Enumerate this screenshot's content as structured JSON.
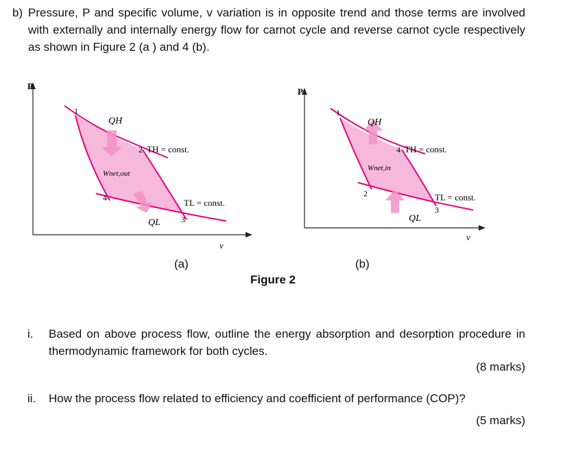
{
  "intro": {
    "label": "b)",
    "text": "Pressure, P and specific volume, v variation is in opposite trend and those terms are involved with externally and internally energy flow for carnot cycle and reverse carnot cycle respectively as shown in Figure 2 (a ) and 4 (b)."
  },
  "figure": {
    "title": "Figure 2",
    "colors": {
      "fill": "#f6b9dc",
      "line": "#e6007e",
      "axis": "#222222",
      "arrow": "#f291c4"
    },
    "panel_a": {
      "sublabel": "(a)",
      "y_axis": "P",
      "x_axis": "v",
      "q_hot": "QH",
      "q_cold": "QL",
      "work": "Wnet,out",
      "th_label": "TH = const.",
      "tl_label": "TL = const.",
      "points": [
        "1",
        "2",
        "3",
        "4"
      ]
    },
    "panel_b": {
      "sublabel": "(b)",
      "y_axis": "P",
      "x_axis": "v",
      "q_hot": "QH",
      "q_cold": "QL",
      "work": "Wnet,in",
      "th_label": "TH = const.",
      "tl_label": "TL = const.",
      "points": [
        "1",
        "2",
        "3",
        "4"
      ]
    }
  },
  "questions": [
    {
      "number": "i.",
      "text": "Based on above process flow, outline the energy absorption and desorption procedure in thermodynamic framework for both cycles.",
      "marks": "(8 marks)"
    },
    {
      "number": "ii.",
      "text": "How the process flow related to efficiency and coefficient of performance (COP)?",
      "marks": "(5 marks)"
    }
  ]
}
